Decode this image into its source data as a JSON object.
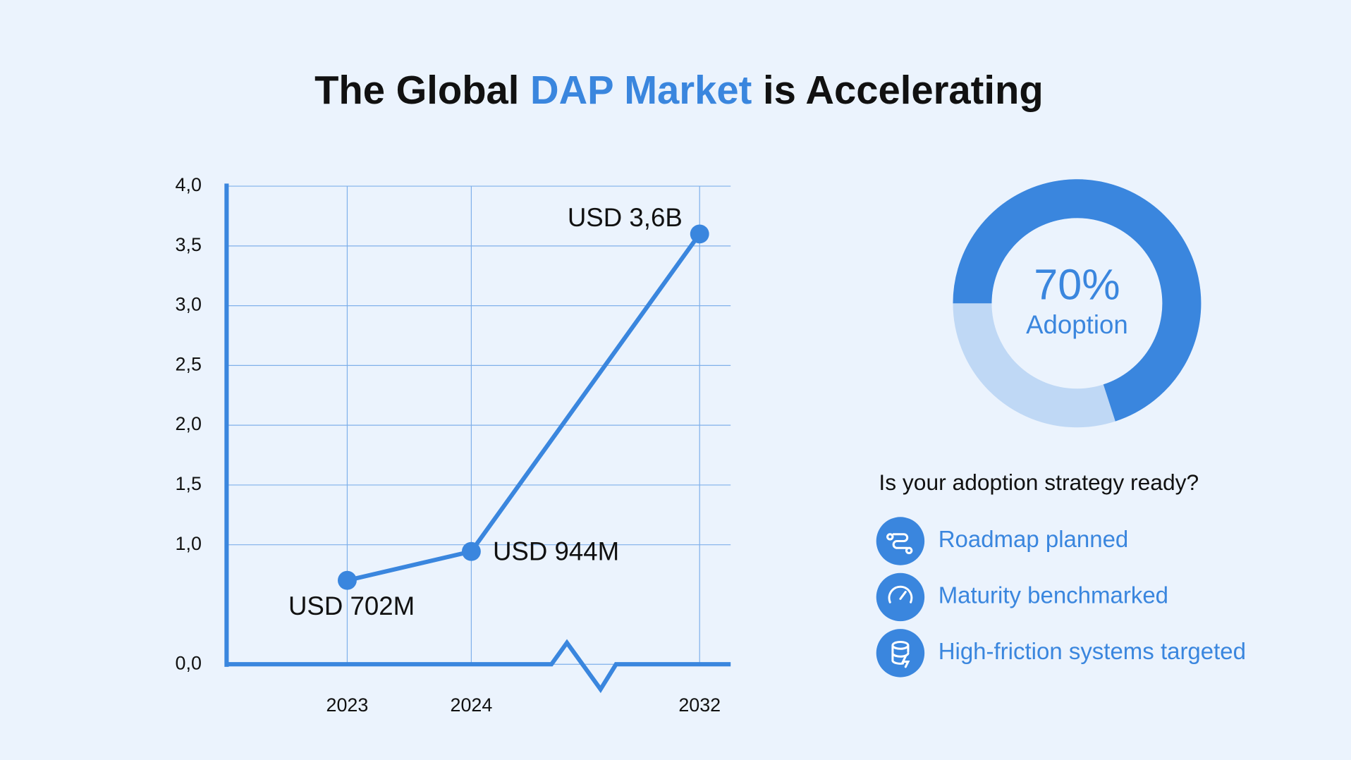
{
  "title": {
    "before": "The Global ",
    "highlight": "DAP Market",
    "after": " is Accelerating"
  },
  "chart_data": [
    {
      "type": "line",
      "categories": [
        "2023",
        "2024",
        "2032"
      ],
      "series": [
        {
          "color": "#3a86de",
          "values": [
            0.702,
            0.944,
            3.6
          ],
          "value_labels": [
            "USD 702M",
            "USD 944M",
            "USD 3,6B"
          ]
        }
      ],
      "ylim": [
        0,
        4
      ],
      "yticks": [
        {
          "value": 0,
          "label": "0,0"
        },
        {
          "value": 1,
          "label": "1,0"
        },
        {
          "value": 1.5,
          "label": "1,5"
        },
        {
          "value": 2,
          "label": "2,0"
        },
        {
          "value": 2.5,
          "label": "2,5"
        },
        {
          "value": 3,
          "label": "3,0"
        },
        {
          "value": 3.5,
          "label": "3,5"
        },
        {
          "value": 4,
          "label": "4,0"
        }
      ],
      "grid": true
    },
    {
      "type": "donut",
      "values": [
        70
      ],
      "value_labels": [
        "70%"
      ],
      "caption": "Adoption",
      "color": "#3a86de",
      "track_color": "#bfd8f5"
    }
  ],
  "sidebar": {
    "question": "Is your adoption strategy ready?",
    "items": [
      "Roadmap planned",
      "Maturity benchmarked",
      "High-friction systems targeted"
    ]
  }
}
